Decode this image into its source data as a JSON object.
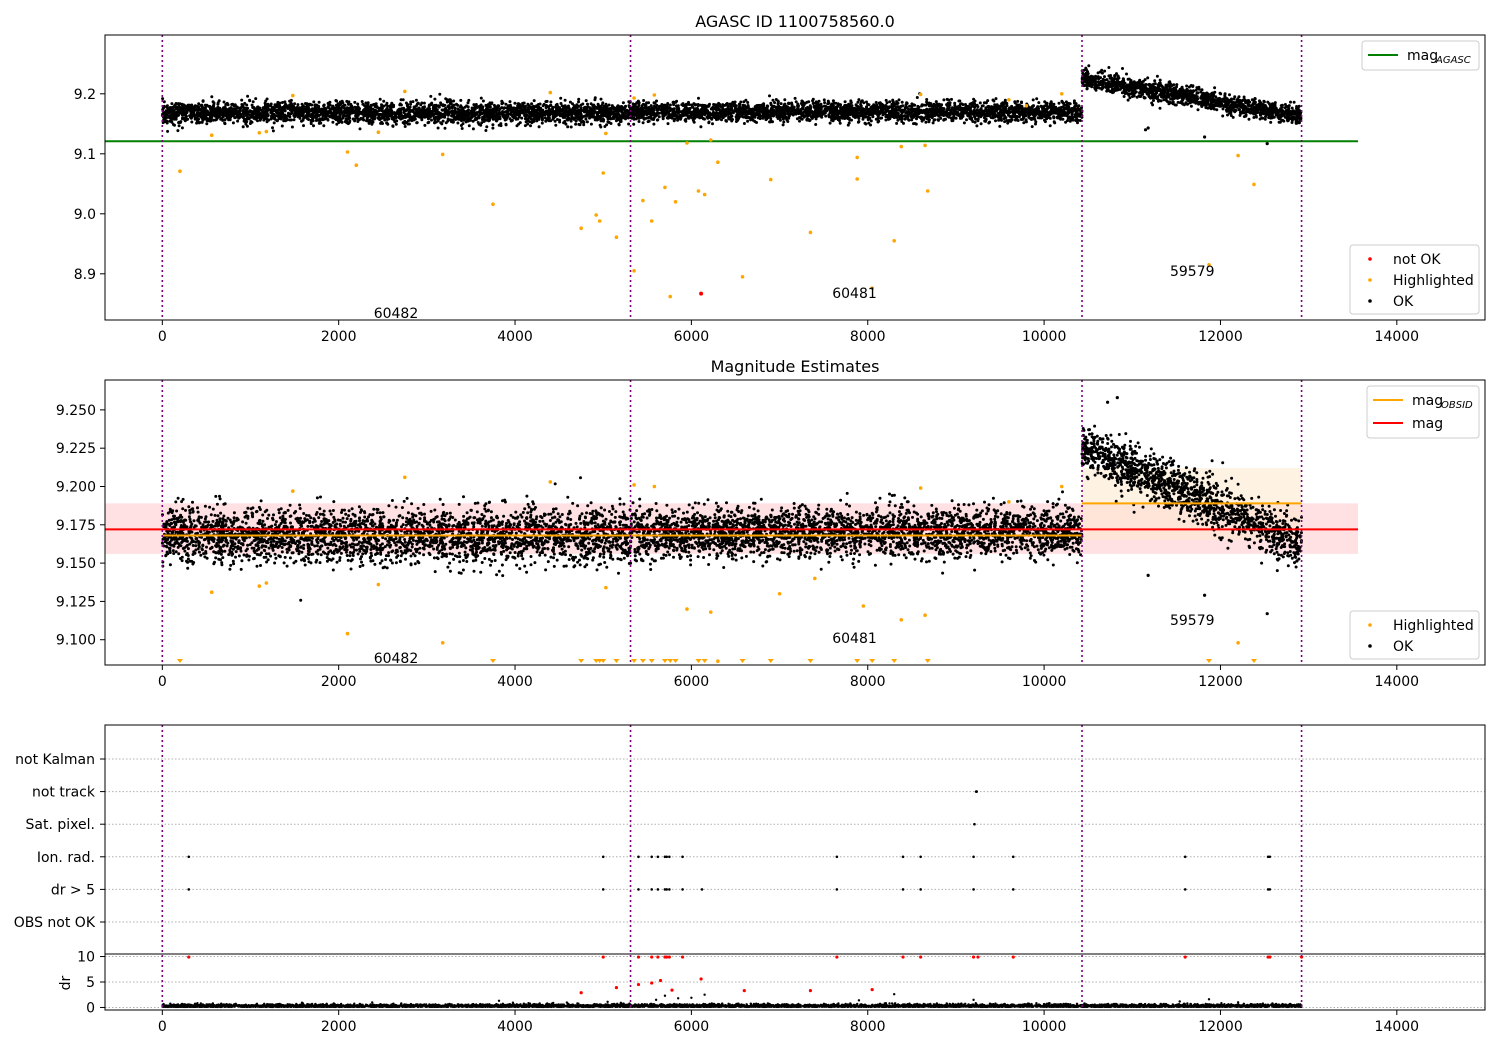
{
  "chart_data": [
    {
      "type": "scatter",
      "title": "AGASC ID 1100758560.0",
      "xlim": [
        -650,
        15000
      ],
      "ylim": [
        8.823,
        9.298
      ],
      "x_ticks": [
        0,
        2000,
        4000,
        6000,
        8000,
        10000,
        12000,
        14000
      ],
      "y_ticks": [
        8.9,
        9.0,
        9.1,
        9.2
      ],
      "obs_boundaries": [
        0,
        5310,
        10430,
        12920
      ],
      "obs_labels": [
        {
          "text": "60482",
          "x": 2650,
          "y": 8.835
        },
        {
          "text": "60481",
          "x": 7850,
          "y": 8.868
        },
        {
          "text": "59579",
          "x": 11680,
          "y": 8.905
        }
      ],
      "lines": [
        {
          "name": "mag",
          "sub": "AGASC",
          "y": 9.121,
          "x_range": [
            -650,
            13560
          ],
          "color": "#008000"
        }
      ],
      "legend_top": [
        {
          "name": "mag",
          "sub": "AGASC",
          "color": "#008000"
        }
      ],
      "legend_bottom": [
        {
          "name": "not OK",
          "color": "#ff0000"
        },
        {
          "name": "Highlighted",
          "color": "#ffa500"
        },
        {
          "name": "OK",
          "color": "#000000"
        }
      ],
      "ok_segments": [
        {
          "x_range": [
            0,
            5310
          ],
          "y_start": 9.168,
          "y_end": 9.168,
          "spread": 0.011
        },
        {
          "x_range": [
            5310,
            10430
          ],
          "y_start": 9.17,
          "y_end": 9.17,
          "spread": 0.01
        },
        {
          "x_range": [
            10430,
            12920
          ],
          "y_start": 9.225,
          "y_end": 9.163,
          "spread": 0.01
        }
      ],
      "highlighted_points": [
        [
          200,
          9.071
        ],
        [
          560,
          9.131
        ],
        [
          1100,
          9.135
        ],
        [
          1180,
          9.137
        ],
        [
          1480,
          9.197
        ],
        [
          2100,
          9.103
        ],
        [
          2200,
          9.081
        ],
        [
          2450,
          9.136
        ],
        [
          2750,
          9.204
        ],
        [
          3180,
          9.099
        ],
        [
          3750,
          9.016
        ],
        [
          4400,
          9.202
        ],
        [
          4750,
          8.976
        ],
        [
          4920,
          8.998
        ],
        [
          4960,
          8.988
        ],
        [
          5000,
          9.068
        ],
        [
          5030,
          9.134
        ],
        [
          5150,
          8.961
        ],
        [
          5350,
          9.193
        ],
        [
          5350,
          8.905
        ],
        [
          5450,
          9.022
        ],
        [
          5550,
          8.988
        ],
        [
          5580,
          9.198
        ],
        [
          5700,
          9.044
        ],
        [
          5760,
          8.862
        ],
        [
          5820,
          9.02
        ],
        [
          5950,
          9.118
        ],
        [
          6080,
          9.038
        ],
        [
          6150,
          9.032
        ],
        [
          6220,
          9.123
        ],
        [
          6300,
          9.086
        ],
        [
          6580,
          8.895
        ],
        [
          6900,
          9.057
        ],
        [
          7350,
          8.969
        ],
        [
          7880,
          9.094
        ],
        [
          7880,
          9.058
        ],
        [
          8050,
          8.876
        ],
        [
          8300,
          8.955
        ],
        [
          8380,
          9.112
        ],
        [
          8600,
          9.199
        ],
        [
          8650,
          9.114
        ],
        [
          8680,
          9.038
        ],
        [
          9600,
          9.19
        ],
        [
          9800,
          9.18
        ],
        [
          10200,
          9.2
        ],
        [
          12200,
          9.097
        ],
        [
          12380,
          9.049
        ],
        [
          11870,
          8.915
        ]
      ],
      "not_ok_points": [
        [
          6110,
          8.867
        ]
      ],
      "ok_outliers": [
        [
          11180,
          9.143
        ],
        [
          11820,
          9.128
        ],
        [
          12530,
          9.117
        ],
        [
          11150,
          9.14
        ]
      ]
    },
    {
      "type": "scatter",
      "title": "Magnitude Estimates",
      "xlim": [
        -650,
        15000
      ],
      "ylim": [
        9.0835,
        9.2695
      ],
      "x_ticks": [
        0,
        2000,
        4000,
        6000,
        8000,
        10000,
        12000,
        14000
      ],
      "y_ticks": [
        9.1,
        9.125,
        9.15,
        9.175,
        9.2,
        9.225,
        9.25
      ],
      "obs_boundaries": [
        0,
        5310,
        10430,
        12920
      ],
      "obs_labels": [
        {
          "text": "60482",
          "x": 2650,
          "y": 9.088
        },
        {
          "text": "60481",
          "x": 7850,
          "y": 9.101
        },
        {
          "text": "59579",
          "x": 11680,
          "y": 9.113
        }
      ],
      "lines": [
        {
          "name": "mag",
          "sub": "OBSID",
          "y": 9.168,
          "x_range": [
            0,
            10430
          ],
          "color": "#ffa500"
        },
        {
          "name": "mag",
          "sub": "OBSID",
          "y": 9.189,
          "x_range": [
            10430,
            12920
          ],
          "color": "#ffa500"
        },
        {
          "name": "mag",
          "sub": "",
          "y": 9.172,
          "x_range": [
            -650,
            13560
          ],
          "color": "#ff0000"
        }
      ],
      "bands": [
        {
          "y_range": [
            9.156,
            9.189
          ],
          "x_range": [
            -650,
            13560
          ],
          "color": "#ffc8cd"
        },
        {
          "y_range": [
            9.165,
            9.212
          ],
          "x_range": [
            10430,
            12920
          ],
          "color": "#fde9cc"
        }
      ],
      "legend_top": [
        {
          "name": "mag",
          "sub": "OBSID",
          "color": "#ffa500"
        },
        {
          "name": "mag",
          "sub": "",
          "color": "#ff0000"
        }
      ],
      "legend_bottom": [
        {
          "name": "Highlighted",
          "color": "#ffa500"
        },
        {
          "name": "OK",
          "color": "#000000"
        }
      ],
      "ok_segments": [
        {
          "x_range": [
            0,
            5310
          ],
          "y_start": 9.168,
          "y_end": 9.168,
          "spread": 0.011
        },
        {
          "x_range": [
            5310,
            10430
          ],
          "y_start": 9.17,
          "y_end": 9.17,
          "spread": 0.01
        },
        {
          "x_range": [
            10430,
            12920
          ],
          "y_start": 9.225,
          "y_end": 9.163,
          "spread": 0.01
        }
      ],
      "highlighted_points": [
        [
          560,
          9.131
        ],
        [
          1100,
          9.135
        ],
        [
          1180,
          9.137
        ],
        [
          1480,
          9.197
        ],
        [
          2100,
          9.104
        ],
        [
          2200,
          9.082
        ],
        [
          2450,
          9.136
        ],
        [
          2750,
          9.206
        ],
        [
          3180,
          9.098
        ],
        [
          4400,
          9.203
        ],
        [
          5030,
          9.134
        ],
        [
          5350,
          9.201
        ],
        [
          5580,
          9.2
        ],
        [
          5950,
          9.12
        ],
        [
          6220,
          9.118
        ],
        [
          6300,
          9.086
        ],
        [
          7000,
          9.13
        ],
        [
          7400,
          9.14
        ],
        [
          7950,
          9.122
        ],
        [
          8380,
          9.113
        ],
        [
          8600,
          9.199
        ],
        [
          8650,
          9.116
        ],
        [
          9600,
          9.19
        ],
        [
          10200,
          9.2
        ],
        [
          12200,
          9.098
        ]
      ],
      "highlighted_markers": [
        200,
        3750,
        4750,
        4920,
        4960,
        5000,
        5150,
        5350,
        5450,
        5550,
        5700,
        5760,
        5820,
        6080,
        6150,
        6580,
        6900,
        7350,
        7880,
        8050,
        8300,
        8680,
        11870,
        12380
      ],
      "ok_outliers": [
        [
          11180,
          9.142
        ],
        [
          11820,
          9.129
        ],
        [
          12530,
          9.117
        ],
        [
          10830,
          9.258
        ],
        [
          10720,
          9.255
        ]
      ]
    },
    {
      "type": "scatter",
      "title": "",
      "xlim": [
        -650,
        15000
      ],
      "x_ticks": [
        0,
        2000,
        4000,
        6000,
        8000,
        10000,
        12000,
        14000
      ],
      "obs_boundaries": [
        0,
        5310,
        10430,
        12920
      ],
      "flag_categories": [
        "not Kalman",
        "not track",
        "Sat. pixel.",
        "Ion. rad.",
        "dr > 5",
        "OBS not OK"
      ],
      "flag_points": {
        "not track": [
          9230,
          9235
        ],
        "Sat. pixel.": [
          9210
        ],
        "Ion. rad.": [
          300,
          5000,
          5400,
          5550,
          5620,
          5700,
          5720,
          5750,
          5900,
          7650,
          8400,
          8600,
          9200,
          9650,
          11600,
          12540,
          12560
        ],
        "dr > 5": [
          300,
          5000,
          5400,
          5550,
          5620,
          5700,
          5720,
          5750,
          5900,
          6120,
          7650,
          8400,
          8600,
          9200,
          9650,
          11600,
          12540,
          12560
        ]
      },
      "dr": {
        "ylabel": "dr",
        "ylim": [
          -0.5,
          10.5
        ],
        "y_ticks": [
          0,
          5,
          10
        ],
        "red_points": [
          [
            300,
            9.9
          ],
          [
            5000,
            9.9
          ],
          [
            5400,
            9.9
          ],
          [
            5550,
            9.9
          ],
          [
            5620,
            9.9
          ],
          [
            5700,
            9.9
          ],
          [
            5720,
            9.9
          ],
          [
            5750,
            9.9
          ],
          [
            5900,
            9.9
          ],
          [
            7650,
            9.9
          ],
          [
            8400,
            9.9
          ],
          [
            8600,
            9.9
          ],
          [
            9200,
            9.9
          ],
          [
            9250,
            9.9
          ],
          [
            9650,
            9.9
          ],
          [
            11600,
            9.9
          ],
          [
            12540,
            9.9
          ],
          [
            12560,
            9.9
          ],
          [
            12920,
            9.9
          ],
          [
            4750,
            2.9
          ],
          [
            5150,
            3.9
          ],
          [
            5550,
            4.8
          ],
          [
            5650,
            5.3
          ],
          [
            5780,
            3.4
          ],
          [
            6110,
            5.6
          ],
          [
            6600,
            3.3
          ],
          [
            7350,
            3.3
          ],
          [
            8050,
            3.5
          ],
          [
            5400,
            4.5
          ]
        ],
        "black_points": [
          [
            5050,
            1.1
          ],
          [
            5600,
            1.5
          ],
          [
            5700,
            2.3
          ],
          [
            6000,
            1.9
          ],
          [
            6150,
            2.5
          ],
          [
            7900,
            1.4
          ],
          [
            8300,
            2.6
          ],
          [
            9200,
            1.5
          ],
          [
            11870,
            1.6
          ],
          [
            12200,
            1.0
          ],
          [
            5200,
            0.9
          ],
          [
            5850,
            1.8
          ]
        ]
      }
    }
  ]
}
